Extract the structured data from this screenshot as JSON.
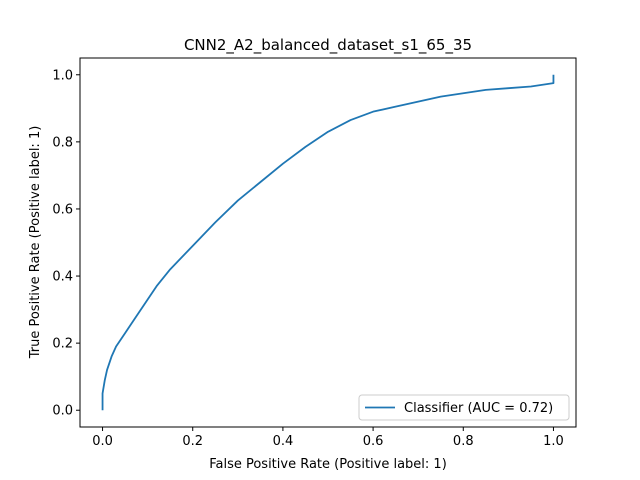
{
  "chart_data": {
    "type": "line",
    "title": "CNN2_A2_balanced_dataset_s1_65_35",
    "xlabel": "False Positive Rate (Positive label: 1)",
    "ylabel": "True Positive Rate (Positive label: 1)",
    "xlim": [
      -0.05,
      1.05
    ],
    "ylim": [
      -0.05,
      1.05
    ],
    "xticks": [
      0.0,
      0.2,
      0.4,
      0.6,
      0.8,
      1.0
    ],
    "yticks": [
      0.0,
      0.2,
      0.4,
      0.6,
      0.8,
      1.0
    ],
    "xtick_labels": [
      "0.0",
      "0.2",
      "0.4",
      "0.6",
      "0.8",
      "1.0"
    ],
    "ytick_labels": [
      "0.0",
      "0.2",
      "0.4",
      "0.6",
      "0.8",
      "1.0"
    ],
    "grid": false,
    "legend_position": "lower-right",
    "series": [
      {
        "name": "Classifier (AUC = 0.72)",
        "color": "#1f77b4",
        "x": [
          0.0,
          0.0,
          0.005,
          0.01,
          0.02,
          0.03,
          0.05,
          0.07,
          0.1,
          0.12,
          0.15,
          0.2,
          0.25,
          0.3,
          0.35,
          0.4,
          0.45,
          0.5,
          0.55,
          0.6,
          0.65,
          0.7,
          0.75,
          0.8,
          0.85,
          0.9,
          0.95,
          1.0,
          1.0
        ],
        "y": [
          0.0,
          0.05,
          0.09,
          0.12,
          0.16,
          0.19,
          0.23,
          0.27,
          0.33,
          0.37,
          0.42,
          0.49,
          0.56,
          0.625,
          0.68,
          0.735,
          0.785,
          0.83,
          0.865,
          0.89,
          0.905,
          0.92,
          0.935,
          0.945,
          0.955,
          0.96,
          0.965,
          0.975,
          1.0
        ]
      }
    ]
  }
}
